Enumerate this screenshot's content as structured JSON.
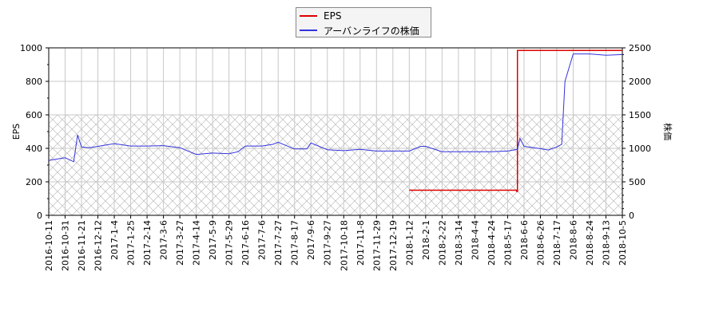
{
  "legend": {
    "items": [
      {
        "label": "EPS",
        "color": "#dd0000"
      },
      {
        "label": "アーバンライフの株価",
        "color": "#3333dd"
      }
    ]
  },
  "axes": {
    "left_label": "EPS",
    "right_label": "株価",
    "left_ticks": [
      "0",
      "200",
      "400",
      "600",
      "800",
      "1000"
    ],
    "right_ticks": [
      "0",
      "500",
      "1000",
      "1500",
      "2000",
      "2500"
    ]
  },
  "chart_data": {
    "type": "line",
    "title": "",
    "xlabel": "",
    "ylabel": "EPS",
    "y2label": "株価",
    "ylim": [
      0,
      1000
    ],
    "y2lim": [
      0,
      2500
    ],
    "grid": true,
    "legend_position": "top-center",
    "categories": [
      "2016-10-11",
      "2016-10-31",
      "2016-11-21",
      "2016-12-12",
      "2017-1-4",
      "2017-1-25",
      "2017-2-14",
      "2017-3-6",
      "2017-3-27",
      "2017-4-14",
      "2017-5-9",
      "2017-5-29",
      "2017-6-16",
      "2017-7-6",
      "2017-7-27",
      "2017-8-17",
      "2017-9-6",
      "2017-9-27",
      "2017-10-18",
      "2017-11-8",
      "2017-11-29",
      "2017-12-19",
      "2018-1-12",
      "2018-2-1",
      "2018-2-22",
      "2018-3-14",
      "2018-4-4",
      "2018-4-24",
      "2018-5-17",
      "2018-6-6",
      "2018-6-26",
      "2018-7-17",
      "2018-8-6",
      "2018-8-24",
      "2018-9-13",
      "2018-10-5"
    ],
    "series": [
      {
        "name": "EPS",
        "axis": "left",
        "color": "#dd0000",
        "x": [
          "2018-1-12",
          "2018-2-1",
          "2018-3-14",
          "2018-4-24",
          "2018-5-17",
          "2018-5-28",
          "2018-5-29",
          "2018-6-6",
          "2018-7-17",
          "2018-8-24",
          "2018-9-13",
          "2018-10-5"
        ],
        "values": [
          150,
          150,
          150,
          150,
          150,
          143,
          985,
          985,
          985,
          985,
          985,
          985
        ]
      },
      {
        "name": "アーバンライフの株価",
        "axis": "right",
        "color": "#3333dd",
        "x": [
          "2016-10-11",
          "2016-10-31",
          "2016-11-11",
          "2016-11-16",
          "2016-11-21",
          "2016-12-1",
          "2016-12-12",
          "2017-1-4",
          "2017-1-25",
          "2017-2-14",
          "2017-3-6",
          "2017-3-27",
          "2017-4-14",
          "2017-5-9",
          "2017-5-29",
          "2017-6-8",
          "2017-6-16",
          "2017-7-6",
          "2017-7-20",
          "2017-7-27",
          "2017-8-17",
          "2017-9-1",
          "2017-9-6",
          "2017-9-27",
          "2017-10-18",
          "2017-11-8",
          "2017-11-29",
          "2017-12-19",
          "2018-1-12",
          "2018-1-26",
          "2018-2-1",
          "2018-2-22",
          "2018-3-14",
          "2018-4-4",
          "2018-4-24",
          "2018-5-17",
          "2018-5-29",
          "2018-6-1",
          "2018-6-6",
          "2018-6-26",
          "2018-7-6",
          "2018-7-17",
          "2018-7-23",
          "2018-7-27",
          "2018-8-6",
          "2018-8-24",
          "2018-9-13",
          "2018-10-5"
        ],
        "values": [
          820,
          860,
          800,
          1200,
          1020,
          1010,
          1030,
          1070,
          1035,
          1035,
          1040,
          1010,
          910,
          930,
          920,
          950,
          1035,
          1035,
          1060,
          1090,
          990,
          990,
          1080,
          980,
          965,
          985,
          960,
          960,
          960,
          1030,
          1030,
          950,
          950,
          950,
          950,
          960,
          985,
          1150,
          1030,
          995,
          975,
          1020,
          1060,
          2000,
          2410,
          2410,
          2390,
          2400
        ]
      }
    ]
  }
}
